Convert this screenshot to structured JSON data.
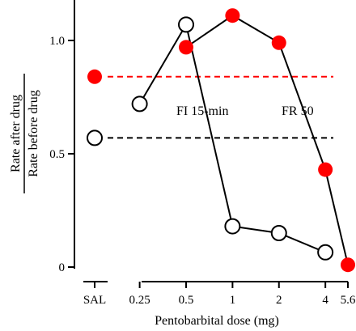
{
  "chart_data": {
    "type": "line",
    "xlabel": "Pentobarbital dose (mg)",
    "ylabel_numerator": "Rate after drug",
    "ylabel_denominator": "Rate before drug",
    "x_tick_labels": [
      "SAL",
      "0.25",
      "0.5",
      "1",
      "2",
      "4",
      "5.6"
    ],
    "x_tick_values": [
      null,
      0.25,
      0.5,
      1,
      2,
      4,
      5.6
    ],
    "x_scale": "log",
    "y_ticks": [
      0,
      0.5,
      1.0
    ],
    "y_tick_labels": [
      "0",
      "0.5",
      "1.0"
    ],
    "ylim": [
      0,
      1.15
    ],
    "grid": false,
    "series": [
      {
        "name": "FI 15-min",
        "color": "#000000",
        "marker": "open-circle",
        "saline_value": 0.57,
        "x": [
          0.25,
          0.5,
          1,
          2,
          4
        ],
        "values": [
          0.72,
          1.07,
          0.18,
          0.15,
          0.065
        ]
      },
      {
        "name": "FR 50",
        "color": "#ff0000",
        "marker": "filled-circle",
        "saline_value": 0.84,
        "x": [
          0.5,
          1,
          2,
          4,
          5.6
        ],
        "values": [
          0.97,
          1.11,
          0.99,
          0.43,
          0.01
        ]
      }
    ]
  }
}
